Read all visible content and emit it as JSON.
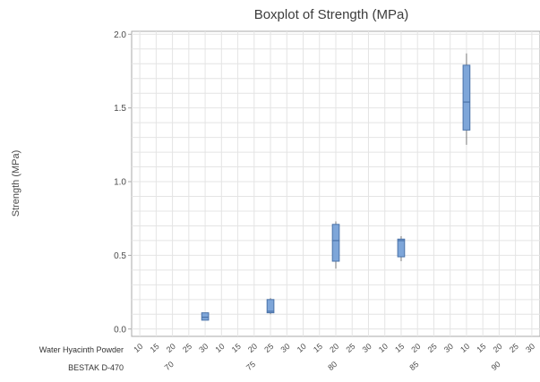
{
  "chart_data": {
    "type": "boxplot",
    "title": "Boxplot of Strength (MPa)",
    "ylabel": "Strength (MPa)",
    "ylim": [
      -0.05,
      2.02
    ],
    "y_ticks": [
      "0.0",
      "0.5",
      "1.0",
      "1.5",
      "2.0"
    ],
    "y_tick_values": [
      0.0,
      0.5,
      1.0,
      1.5,
      2.0
    ],
    "grid": true,
    "factor_labels": {
      "inner": "Water Hyacinth Powder",
      "outer": "BESTAK D-470"
    },
    "inner_levels": [
      "10",
      "15",
      "20",
      "25",
      "30"
    ],
    "outer_levels": [
      "70",
      "75",
      "80",
      "85",
      "90"
    ],
    "colors": {
      "box_fill": "#7ea6d9",
      "box_stroke": "#4a72a8",
      "whisker": "#7a7a7a",
      "grid": "#e4e4e4",
      "frame": "#a9a9a9"
    },
    "boxes": [
      {
        "group": "70",
        "level": "30",
        "min": 0.06,
        "q1": 0.06,
        "median": 0.08,
        "q3": 0.11,
        "max": 0.11
      },
      {
        "group": "75",
        "level": "25",
        "min": 0.1,
        "q1": 0.11,
        "median": 0.12,
        "q3": 0.2,
        "max": 0.21
      },
      {
        "group": "80",
        "level": "20",
        "min": 0.41,
        "q1": 0.46,
        "median": 0.6,
        "q3": 0.71,
        "max": 0.73
      },
      {
        "group": "85",
        "level": "15",
        "min": 0.46,
        "q1": 0.49,
        "median": 0.6,
        "q3": 0.61,
        "max": 0.63
      },
      {
        "group": "90",
        "level": "10",
        "min": 1.25,
        "q1": 1.35,
        "median": 1.54,
        "q3": 1.79,
        "max": 1.87
      }
    ]
  }
}
